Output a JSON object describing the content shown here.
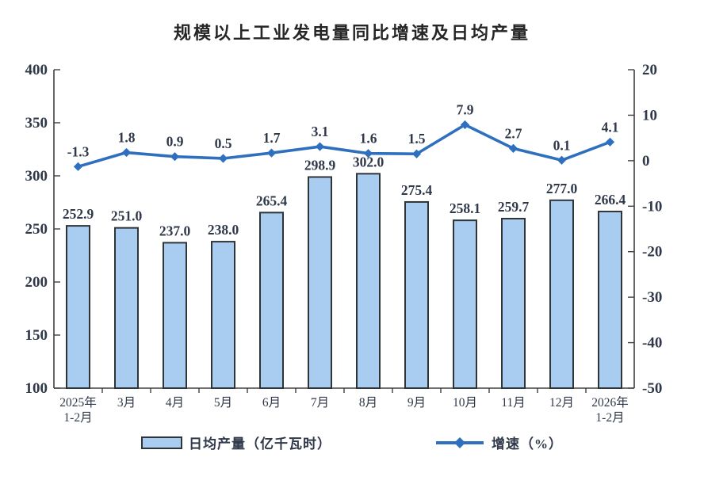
{
  "title": "规模以上工业发电量同比增速及日均产量",
  "chart_data": {
    "type": "bar",
    "title": "规模以上工业发电量同比增速及日均产量",
    "categories": [
      "2025年\n1-2月",
      "3月",
      "4月",
      "5月",
      "6月",
      "7月",
      "8月",
      "9月",
      "10月",
      "11月",
      "12月",
      "2026年\n1-2月"
    ],
    "series": [
      {
        "name": "日均产量（亿千瓦时）",
        "type": "bar",
        "axis": "left",
        "values": [
          252.9,
          251.0,
          237.0,
          238.0,
          265.4,
          298.9,
          302.0,
          275.4,
          258.1,
          259.7,
          277.0,
          266.4
        ],
        "labels": [
          "252.9",
          "251.0",
          "237.0",
          "238.0",
          "265.4",
          "298.9",
          "302.0",
          "275.4",
          "258.1",
          "259.7",
          "277.0",
          "266.4"
        ]
      },
      {
        "name": "增速（%）",
        "type": "line",
        "axis": "right",
        "values": [
          -1.3,
          1.8,
          0.9,
          0.5,
          1.7,
          3.1,
          1.6,
          1.5,
          7.9,
          2.7,
          0.1,
          4.1
        ],
        "labels": [
          "-1.3",
          "1.8",
          "0.9",
          "0.5",
          "1.7",
          "3.1",
          "1.6",
          "1.5",
          "7.9",
          "2.7",
          "0.1",
          "4.1"
        ]
      }
    ],
    "left_axis": {
      "min": 100,
      "max": 400,
      "ticks": [
        400,
        350,
        300,
        250,
        200,
        150,
        100
      ]
    },
    "right_axis": {
      "min": -50,
      "max": 20,
      "ticks": [
        20,
        10,
        0,
        -10,
        -20,
        -30,
        -40,
        -50
      ]
    },
    "grid": false,
    "legend_position": "bottom",
    "colors": {
      "bar_fill": "#A9CDF1",
      "bar_border": "#2F3439",
      "line": "#2E6FBE",
      "text": "#30394A",
      "axis": "#404040",
      "background": "#FFFFFF"
    }
  }
}
